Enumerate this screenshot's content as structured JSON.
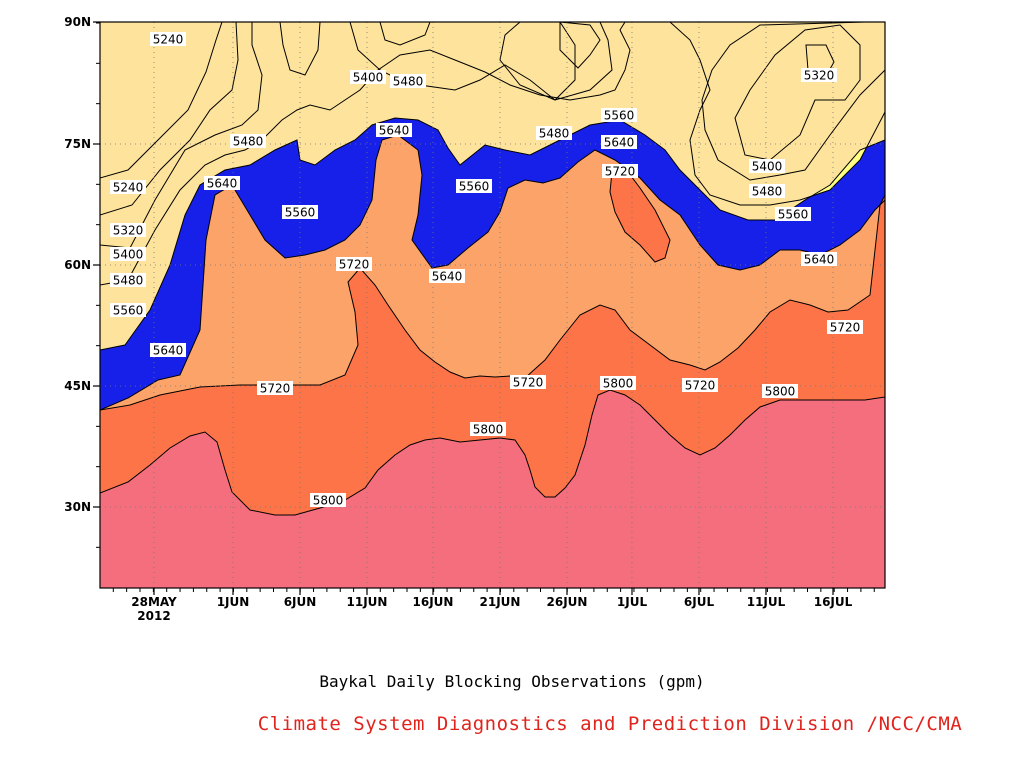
{
  "chart_data": {
    "type": "heatmap",
    "subtype": "filled-contour",
    "title": "Baykal Daily Blocking Observations (gpm)",
    "credit": "Climate System Diagnostics and Prediction Division /NCC/CMA",
    "x_ticks": [
      "28MAY",
      "1JUN",
      "6JUN",
      "11JUN",
      "16JUN",
      "21JUN",
      "26JUN",
      "1JUL",
      "6JUL",
      "11JUL",
      "16JUL"
    ],
    "x_tick_year": "2012",
    "y_ticks": [
      "30N",
      "45N",
      "60N",
      "75N",
      "90N"
    ],
    "y_range": [
      20,
      90
    ],
    "x_range": [
      "2012-05-24",
      "2012-07-21"
    ],
    "grid": "dotted",
    "contour_levels": [
      5240,
      5320,
      5400,
      5480,
      5560,
      5640,
      5720,
      5800
    ],
    "fill_colors": {
      "below_5240": "#1620e8",
      "5240_5320": "#4e58f0",
      "5320_5400": "#5b8ee8",
      "5400_5480": "#6ec6f8",
      "5480_5560": "#ffff84",
      "5560_5640": "#fde39c",
      "5640_5720": "#fca36a",
      "5720_5800": "#fc7448",
      "above_5800": "#f56e7e"
    },
    "contour_labels": [
      "5240",
      "5240",
      "5320",
      "5400",
      "5480",
      "5560",
      "5640",
      "5720",
      "5800",
      "5480",
      "5640",
      "5560",
      "5720",
      "5800",
      "5400",
      "5480",
      "5640",
      "5560",
      "5640",
      "5480",
      "5720",
      "5800",
      "5560",
      "5640",
      "5720",
      "5800",
      "5720",
      "5320",
      "5400",
      "5480",
      "5560",
      "5640",
      "5720",
      "5800"
    ]
  }
}
